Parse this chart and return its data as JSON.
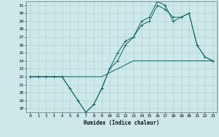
{
  "title": "",
  "xlabel": "Humidex (Indice chaleur)",
  "x": [
    0,
    1,
    2,
    3,
    4,
    5,
    6,
    7,
    8,
    9,
    10,
    11,
    12,
    13,
    14,
    15,
    16,
    17,
    18,
    19,
    20,
    21,
    22,
    23
  ],
  "line1": [
    22,
    22,
    22,
    22,
    22,
    20.5,
    19,
    17.5,
    18.5,
    20.5,
    23,
    25,
    26.5,
    27,
    28.5,
    29,
    31,
    30.5,
    29.5,
    29.5,
    30,
    26,
    24.5,
    24
  ],
  "line2": [
    22,
    22,
    22,
    22,
    22,
    20.5,
    19,
    17.5,
    18.5,
    20.5,
    23,
    24,
    26,
    27,
    29,
    29.5,
    31.5,
    31,
    29,
    29.5,
    30,
    26,
    24.5,
    24
  ],
  "line3": [
    22,
    22,
    22,
    22,
    22,
    22,
    22,
    22,
    22,
    22,
    22.5,
    23,
    23.5,
    24,
    24,
    24,
    24,
    24,
    24,
    24,
    24,
    24,
    24,
    24
  ],
  "bg_color": "#cce8e8",
  "line_color": "#1a6b6b",
  "grid_color": "#b0d0d0",
  "ylim": [
    17.5,
    31.5
  ],
  "yticks": [
    18,
    19,
    20,
    21,
    22,
    23,
    24,
    25,
    26,
    27,
    28,
    29,
    30,
    31
  ],
  "xticks": [
    0,
    1,
    2,
    3,
    4,
    5,
    6,
    7,
    8,
    9,
    10,
    11,
    12,
    13,
    14,
    15,
    16,
    17,
    18,
    19,
    20,
    21,
    22,
    23
  ]
}
